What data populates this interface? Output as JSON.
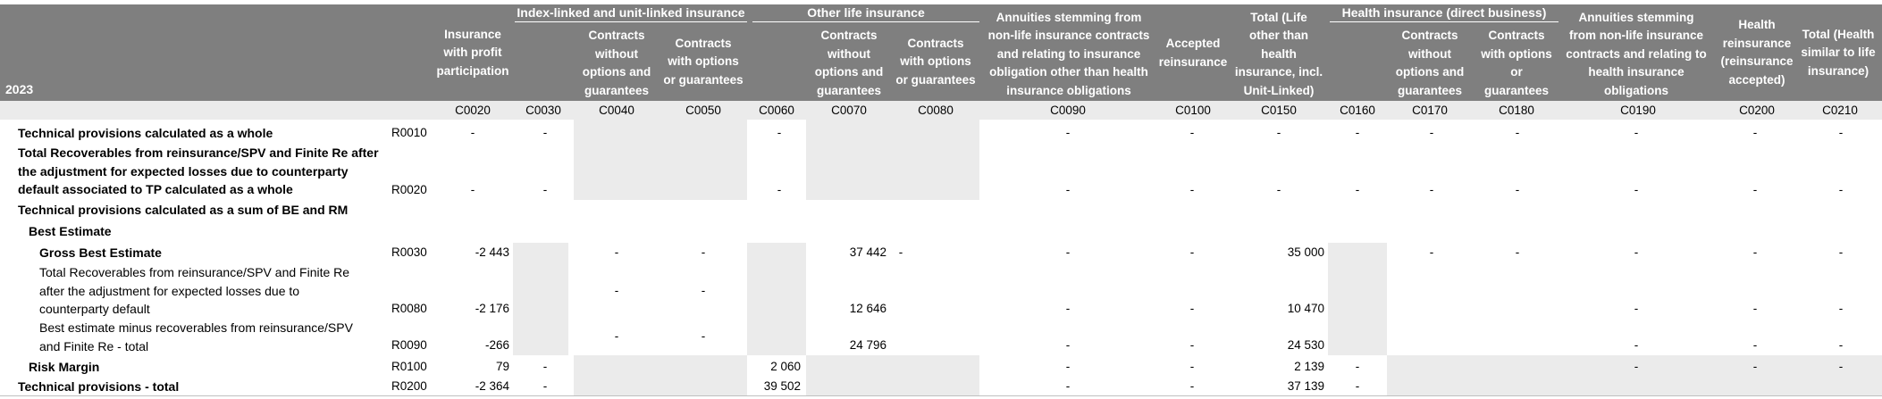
{
  "year": "2023",
  "groups": {
    "index_linked": "Index-linked and unit-linked insurance",
    "other_life": "Other life insurance",
    "health_direct": "Health insurance (direct business)"
  },
  "col_headers": {
    "c0020": [
      "Insurance",
      "with profit",
      "participation"
    ],
    "c0040": [
      "Contracts",
      "without",
      "options and",
      "guarantees"
    ],
    "c0050": [
      "Contracts",
      "with options",
      "or guarantees"
    ],
    "c0070": [
      "Contracts",
      "without",
      "options and",
      "guarantees"
    ],
    "c0080": [
      "Contracts",
      "with options",
      "or guarantees"
    ],
    "c0090": [
      "Annuities stemming from",
      "non-life insurance contracts",
      "and relating to insurance",
      "obligation other than health",
      "insurance obligations"
    ],
    "c0100": [
      "Accepted",
      "reinsurance"
    ],
    "c0150": [
      "Total (Life",
      "other than",
      "health",
      "insurance, incl.",
      "Unit-Linked)"
    ],
    "c0170": [
      "Contracts",
      "without",
      "options and",
      "guarantees"
    ],
    "c0180": [
      "Contracts",
      "with options",
      "or",
      "guarantees"
    ],
    "c0190": [
      "Annuities stemming",
      "from non-life insurance",
      "contracts and relating to",
      "health insurance",
      "obligations"
    ],
    "c0200": [
      "Health",
      "reinsurance",
      "(reinsurance",
      "accepted)"
    ],
    "c0210": [
      "Total (Health",
      "similar to life",
      "insurance)"
    ]
  },
  "codes": [
    "C0020",
    "C0030",
    "C0040",
    "C0050",
    "C0060",
    "C0070",
    "C0080",
    "C0090",
    "C0100",
    "C0150",
    "C0160",
    "C0170",
    "C0180",
    "C0190",
    "C0200",
    "C0210"
  ],
  "rows": {
    "r0010": {
      "label": "Technical provisions calculated as a whole",
      "code": "R0010"
    },
    "r0020": {
      "label": [
        "Total Recoverables from reinsurance/SPV and Finite Re after",
        "the adjustment for expected losses due to counterparty",
        "default associated to TP calculated as a whole"
      ],
      "code": "R0020"
    },
    "sum_bm": {
      "label": "Technical provisions calculated as a sum of BE and RM"
    },
    "best_estimate": {
      "label": "Best Estimate"
    },
    "r0030": {
      "label": "Gross Best Estimate",
      "code": "R0030",
      "c0020": "-2 443",
      "c0070": "37 442",
      "c0150": "35 000"
    },
    "r0080": {
      "label": [
        "Total Recoverables from reinsurance/SPV and Finite Re",
        "after the adjustment for expected losses due to",
        "counterparty default"
      ],
      "code": "R0080",
      "c0020": "-2 176",
      "c0070": "12 646",
      "c0150": "10 470"
    },
    "r0090": {
      "label": [
        "Best estimate minus recoverables from reinsurance/SPV",
        "and Finite Re - total"
      ],
      "code": "R0090",
      "c0020": "-266",
      "c0070": "24 796",
      "c0150": "24 530"
    },
    "r0100": {
      "label": "Risk Margin",
      "code": "R0100",
      "c0020": "79",
      "c0060": "2 060",
      "c0150": "2 139"
    },
    "r0200": {
      "label": "Technical provisions - total",
      "code": "R0200",
      "c0020": "-2 364",
      "c0060": "39 502",
      "c0150": "37 139"
    }
  },
  "dash": "-"
}
